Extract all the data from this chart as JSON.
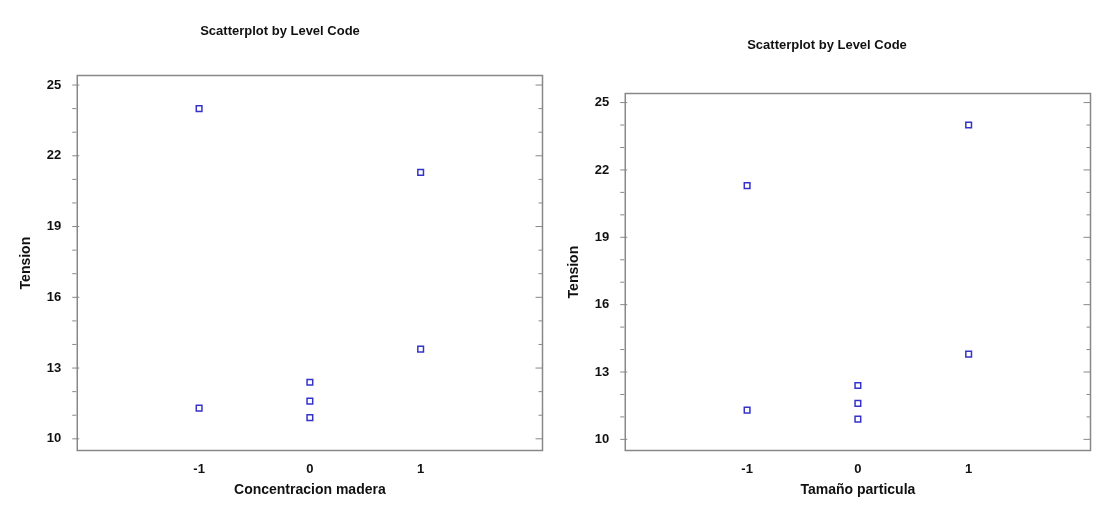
{
  "chart_data": [
    {
      "type": "scatter",
      "title": "Scatterplot by Level Code",
      "xlabel": "Concentracion madera",
      "ylabel": "Tension",
      "marker": "square",
      "grid": false,
      "color": "#3333cc",
      "x": [
        -1,
        -1,
        0,
        0,
        0,
        1,
        1
      ],
      "values": [
        24.0,
        11.3,
        12.4,
        11.6,
        10.9,
        21.3,
        13.8
      ],
      "xlim": [
        -2.1,
        2.1
      ],
      "xticks": [
        -1,
        0,
        1
      ],
      "ylim": [
        9.5,
        25.4
      ],
      "yticks": [
        10,
        {
          "value": 11,
          "label": null
        },
        {
          "value": 12,
          "label": null
        },
        13,
        {
          "value": 14,
          "label": null
        },
        {
          "value": 15,
          "label": null
        },
        16,
        {
          "value": 17,
          "label": null
        },
        {
          "value": 18,
          "label": null
        },
        19,
        {
          "value": 20,
          "label": null
        },
        {
          "value": 21,
          "label": null
        },
        22,
        {
          "value": 23,
          "label": null
        },
        {
          "value": 24,
          "label": null
        },
        25
      ]
    },
    {
      "type": "scatter",
      "title": "Scatterplot by Level Code",
      "xlabel": "Tamaño particula",
      "ylabel": "Tension",
      "marker": "square",
      "grid": false,
      "color": "#3333cc",
      "x": [
        -1,
        -1,
        0,
        0,
        0,
        1,
        1
      ],
      "values": [
        21.3,
        11.3,
        12.4,
        11.6,
        10.9,
        24.0,
        13.8
      ],
      "xlim": [
        -2.1,
        2.1
      ],
      "xticks": [
        -1,
        0,
        1
      ],
      "ylim": [
        9.5,
        25.4
      ],
      "yticks": [
        10,
        {
          "value": 11,
          "label": null
        },
        {
          "value": 12,
          "label": null
        },
        13,
        {
          "value": 14,
          "label": null
        },
        {
          "value": 15,
          "label": null
        },
        16,
        {
          "value": 17,
          "label": null
        },
        {
          "value": 18,
          "label": null
        },
        19,
        {
          "value": 20,
          "label": null
        },
        {
          "value": 21,
          "label": null
        },
        22,
        {
          "value": 23,
          "label": null
        },
        {
          "value": 24,
          "label": null
        },
        25
      ]
    }
  ]
}
